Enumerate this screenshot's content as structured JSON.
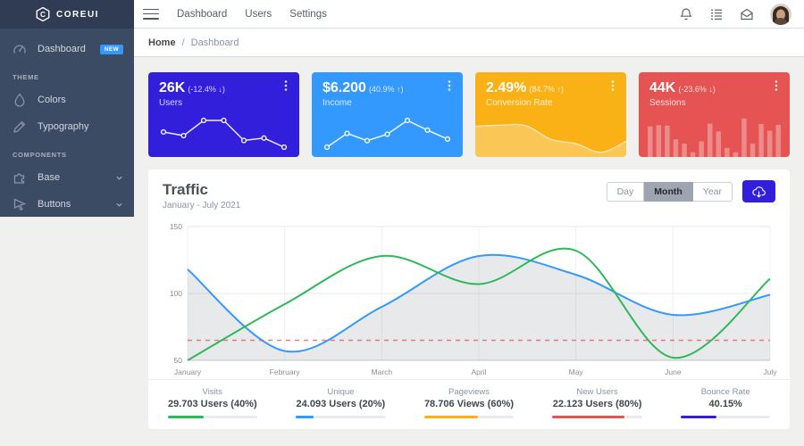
{
  "brand": "COREUI",
  "colors": {
    "primary": "#321fdb",
    "info": "#3399ff",
    "warning": "#f9b115",
    "danger": "#e55353",
    "success": "#2eb85c",
    "sidebar": "#3c4b64"
  },
  "sidebar": {
    "items": [
      {
        "label": "Dashboard",
        "badge": "NEW"
      }
    ],
    "sections": [
      {
        "title": "THEME",
        "items": [
          {
            "label": "Colors"
          },
          {
            "label": "Typography"
          }
        ]
      },
      {
        "title": "COMPONENTS",
        "items": [
          {
            "label": "Base"
          },
          {
            "label": "Buttons"
          }
        ]
      }
    ]
  },
  "header": {
    "nav": [
      "Dashboard",
      "Users",
      "Settings"
    ]
  },
  "breadcrumb": {
    "home": "Home",
    "separator": "/",
    "current": "Dashboard"
  },
  "stat_cards": [
    {
      "value": "26K",
      "delta": "(-12.4% ↓)",
      "label": "Users",
      "color": "#321fdb"
    },
    {
      "value": "$6.200",
      "delta": "(40.9% ↑)",
      "label": "Income",
      "color": "#3399ff"
    },
    {
      "value": "2.49%",
      "delta": "(84.7% ↑)",
      "label": "Conversion Rate",
      "color": "#f9b115"
    },
    {
      "value": "44K",
      "delta": "(-23.6% ↓)",
      "label": "Sessions",
      "color": "#e55353"
    }
  ],
  "traffic": {
    "title": "Traffic",
    "subtitle": "January - July 2021",
    "ranges": [
      "Day",
      "Month",
      "Year"
    ],
    "active_range": "Month"
  },
  "chart_data": {
    "main": {
      "type": "line",
      "title": "Traffic",
      "x": [
        "January",
        "February",
        "March",
        "April",
        "May",
        "June",
        "July"
      ],
      "ylim": [
        50,
        150
      ],
      "yticks": [
        50,
        100,
        150
      ],
      "grid": true,
      "legend": "none",
      "series": [
        {
          "name": "traffic-current",
          "color": "#3399ff",
          "area_fill": "rgba(90,100,110,0.14)",
          "values": [
            118,
            57,
            90,
            128,
            114,
            84,
            99
          ]
        },
        {
          "name": "traffic-previous",
          "color": "#2eb85c",
          "values": [
            50,
            92,
            128,
            107,
            132,
            52,
            111
          ]
        },
        {
          "name": "baseline",
          "color": "#e55353",
          "dashed": true,
          "values": [
            65,
            65,
            65,
            65,
            65,
            65,
            65
          ]
        }
      ]
    },
    "sparklines": [
      {
        "name": "Users",
        "type": "line",
        "values": [
          65,
          59,
          84,
          84,
          51,
          55,
          40
        ]
      },
      {
        "name": "Income",
        "type": "line",
        "values": [
          1,
          18,
          9,
          17,
          34,
          22,
          11
        ]
      },
      {
        "name": "Conversion Rate",
        "type": "area",
        "values": [
          78,
          81,
          80,
          45,
          34,
          12,
          40
        ]
      },
      {
        "name": "Sessions",
        "type": "bar",
        "values": [
          78,
          81,
          80,
          45,
          34,
          12,
          40,
          85,
          65,
          23,
          12,
          98,
          34,
          84,
          67,
          82
        ]
      }
    ]
  },
  "footer_stats": [
    {
      "label": "Visits",
      "value": "29.703 Users (40%)",
      "percent": 40,
      "color": "#2eb85c"
    },
    {
      "label": "Unique",
      "value": "24.093 Users (20%)",
      "percent": 20,
      "color": "#3399ff"
    },
    {
      "label": "Pageviews",
      "value": "78.706 Views (60%)",
      "percent": 60,
      "color": "#f9b115"
    },
    {
      "label": "New Users",
      "value": "22.123 Users (80%)",
      "percent": 80,
      "color": "#e55353"
    },
    {
      "label": "Bounce Rate",
      "value": "40.15%",
      "percent": 40,
      "color": "#321fdb"
    }
  ]
}
